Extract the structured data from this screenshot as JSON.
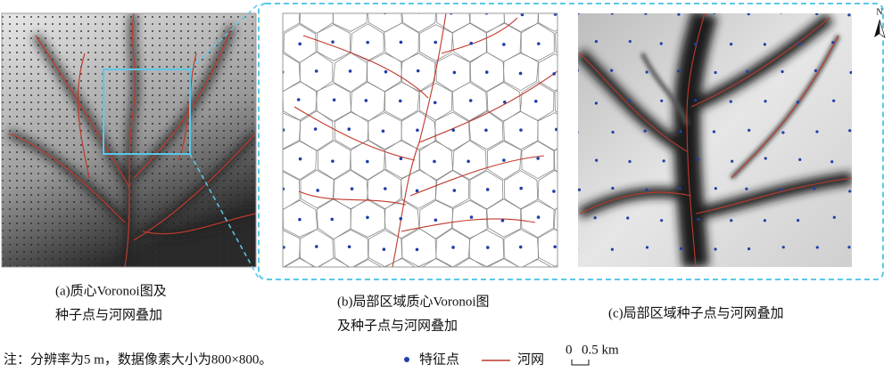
{
  "panels": [
    {
      "caption": [
        "(a)质心Voronoi图及",
        "种子点与河网叠加"
      ]
    },
    {
      "caption": [
        "(b)局部区域质心Voronoi图",
        "及种子点与河网叠加"
      ]
    },
    {
      "caption": [
        "(c)局部区域种子点与河网叠加"
      ]
    }
  ],
  "note": "注：分辨率为5 m，数据像素大小为800×800。",
  "legend": {
    "items": [
      "特征点",
      "河网"
    ]
  },
  "scale_bar": {
    "start": "0",
    "end": "0.5 km"
  },
  "north": "N"
}
